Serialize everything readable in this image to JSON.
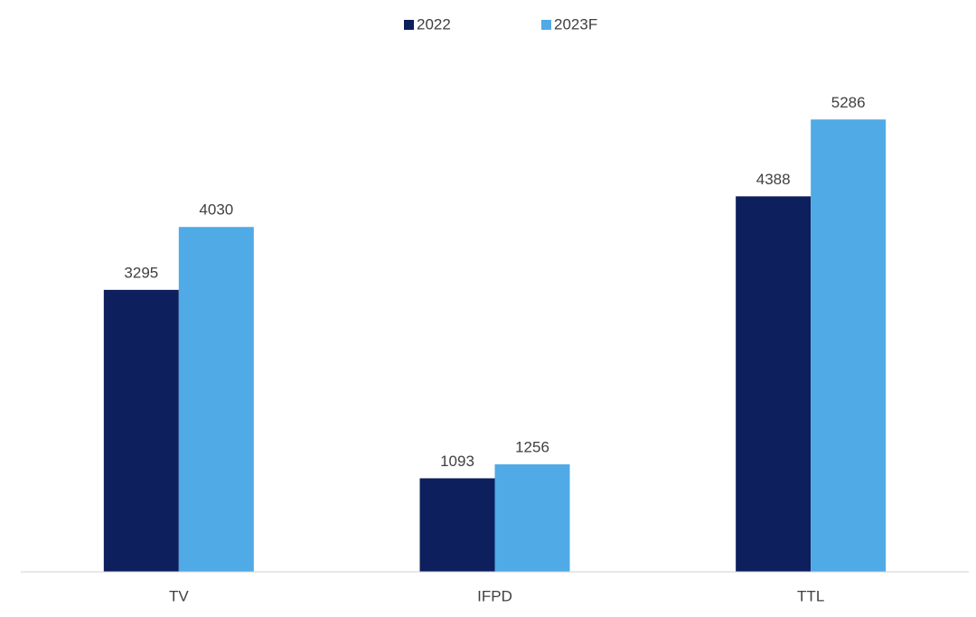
{
  "chart_data": {
    "type": "bar",
    "categories": [
      "TV",
      "IFPD",
      "TTL"
    ],
    "series": [
      {
        "name": "2022",
        "color": "#0d1f5c",
        "values": [
          3295,
          1093,
          4388
        ]
      },
      {
        "name": "2023F",
        "color": "#4faae6",
        "values": [
          4030,
          1256,
          5286
        ]
      }
    ],
    "ylim": [
      0,
      5500
    ]
  }
}
